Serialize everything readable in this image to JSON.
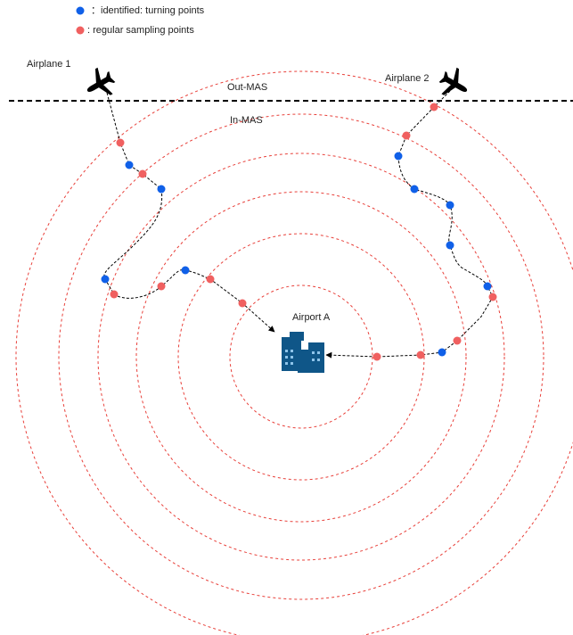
{
  "legend": {
    "turning": "：identified: turning points",
    "sampling": ": regular sampling points"
  },
  "labels": {
    "airplane_1": "Airplane 1",
    "airplane_2": "Airplane 2",
    "out_mas": "Out-MAS",
    "in_mas": "In-MAS",
    "airport": "Airport A"
  }
}
